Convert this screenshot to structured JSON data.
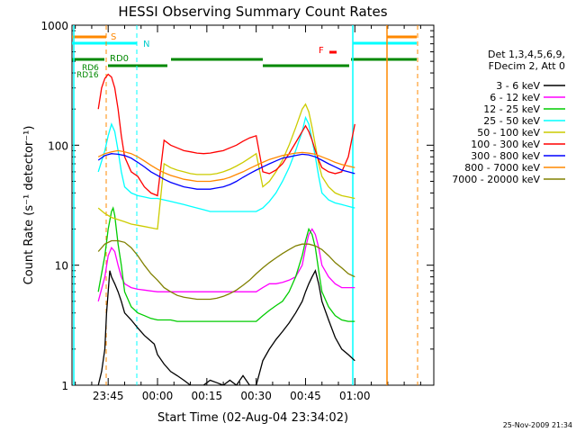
{
  "chart_data": {
    "type": "line",
    "title": "HESSI Observing Summary Count Rates",
    "xlabel": "Start Time (02-Aug-04 23:34:02)",
    "ylabel": "Count Rate (s⁻¹ detector⁻¹)",
    "ylim": [
      1,
      1000
    ],
    "yscale": "log",
    "grid": false,
    "legend_position": "right",
    "legend_header": [
      "Det 1,3,4,5,6,9,",
      "FDecim 2, Att 0"
    ],
    "x_ticks": [
      "23:45",
      "00:00",
      "00:15",
      "00:30",
      "00:45",
      "01:00"
    ],
    "x_tick_minutes": [
      11,
      26,
      41,
      56,
      71,
      86
    ],
    "xlim_minutes": [
      0,
      110
    ],
    "y_ticks": [
      "1",
      "10",
      "100",
      "1000"
    ],
    "y_tick_values": [
      1,
      10,
      100,
      1000
    ],
    "series": [
      {
        "name": "3 - 6 keV",
        "color": "#000000",
        "x": [
          8,
          9,
          10,
          10.5,
          11,
          11.5,
          12,
          13,
          14,
          15,
          16,
          18,
          20,
          22,
          25,
          26,
          28,
          30,
          32,
          34,
          36,
          38,
          40,
          42,
          44,
          46,
          48,
          50,
          52,
          54,
          56,
          58,
          60,
          62,
          64,
          66,
          68,
          70,
          71,
          72,
          73,
          74,
          75,
          76,
          78,
          80,
          82,
          84,
          86
        ],
        "y": [
          1,
          1.3,
          2,
          4,
          6,
          9,
          8,
          7,
          6,
          5,
          4,
          3.5,
          3,
          2.6,
          2.2,
          1.8,
          1.5,
          1.3,
          1.2,
          1.1,
          1,
          1,
          1,
          1.1,
          1.05,
          1,
          1.1,
          1,
          1.2,
          1,
          1,
          1.6,
          2,
          2.4,
          2.8,
          3.3,
          4,
          5,
          6,
          7,
          8,
          9,
          7,
          5,
          3.5,
          2.5,
          2,
          1.8,
          1.6
        ]
      },
      {
        "name": "6 - 12 keV",
        "color": "#ff00ff",
        "x": [
          8,
          10,
          11,
          12,
          13,
          14,
          15,
          16,
          18,
          20,
          22,
          24,
          26,
          28,
          30,
          32,
          34,
          36,
          38,
          40,
          42,
          44,
          46,
          48,
          50,
          52,
          54,
          56,
          58,
          60,
          62,
          64,
          66,
          68,
          70,
          71,
          72,
          73,
          74,
          75,
          76,
          78,
          80,
          82,
          84,
          86
        ],
        "y": [
          5,
          8,
          12,
          14,
          13,
          10,
          8,
          7,
          6.5,
          6.3,
          6.2,
          6.1,
          6,
          6,
          6,
          6,
          6,
          6,
          6,
          6,
          6,
          6,
          6,
          6,
          6,
          6,
          6,
          6,
          6.5,
          7,
          7,
          7.2,
          7.5,
          8,
          10,
          14,
          18,
          20,
          18,
          14,
          10,
          8,
          7,
          6.5,
          6.5,
          6.5
        ]
      },
      {
        "name": "12 - 25 keV",
        "color": "#00cc00",
        "x": [
          8,
          10,
          11,
          12,
          12.5,
          13,
          14,
          15,
          16,
          18,
          20,
          22,
          24,
          26,
          28,
          30,
          32,
          34,
          36,
          38,
          40,
          42,
          44,
          46,
          48,
          50,
          52,
          54,
          56,
          58,
          60,
          62,
          64,
          66,
          68,
          70,
          71,
          72,
          73,
          74,
          75,
          76,
          78,
          80,
          82,
          84,
          86
        ],
        "y": [
          6,
          12,
          20,
          28,
          30,
          26,
          15,
          10,
          6,
          4.5,
          4,
          3.8,
          3.6,
          3.5,
          3.5,
          3.5,
          3.4,
          3.4,
          3.4,
          3.4,
          3.4,
          3.4,
          3.4,
          3.4,
          3.4,
          3.4,
          3.4,
          3.4,
          3.4,
          3.8,
          4.2,
          4.6,
          5,
          6,
          8,
          12,
          16,
          20,
          18,
          14,
          9,
          6,
          4.5,
          3.8,
          3.5,
          3.4,
          3.4
        ]
      },
      {
        "name": "25 - 50 keV",
        "color": "#00ffff",
        "x": [
          8,
          10,
          11,
          12,
          13,
          14,
          15,
          16,
          18,
          20,
          22,
          24,
          26,
          28,
          30,
          32,
          34,
          36,
          38,
          40,
          42,
          44,
          46,
          48,
          50,
          52,
          54,
          56,
          58,
          60,
          62,
          64,
          66,
          68,
          70,
          71,
          72,
          73,
          74,
          75,
          76,
          78,
          80,
          82,
          84,
          86
        ],
        "y": [
          60,
          90,
          120,
          150,
          130,
          90,
          60,
          45,
          40,
          38,
          37,
          36,
          36,
          35,
          34,
          33,
          32,
          31,
          30,
          29,
          28,
          28,
          28,
          28,
          28,
          28,
          28,
          28,
          30,
          34,
          40,
          50,
          65,
          90,
          130,
          170,
          150,
          110,
          80,
          55,
          40,
          35,
          33,
          32,
          31,
          30
        ]
      },
      {
        "name": "50 - 100 keV",
        "color": "#cccc00",
        "x": [
          8,
          10,
          12,
          14,
          16,
          18,
          20,
          22,
          24,
          26,
          28,
          30,
          32,
          34,
          36,
          38,
          40,
          42,
          44,
          46,
          48,
          50,
          52,
          54,
          56,
          58,
          60,
          62,
          64,
          66,
          68,
          70,
          71,
          72,
          73,
          74,
          75,
          76,
          78,
          80,
          82,
          84,
          86
        ],
        "y": [
          30,
          27,
          25,
          24,
          23,
          22,
          21.5,
          21,
          20.5,
          20,
          70,
          65,
          62,
          60,
          58,
          57,
          57,
          57,
          58,
          60,
          63,
          67,
          72,
          78,
          85,
          45,
          50,
          60,
          75,
          100,
          140,
          200,
          220,
          190,
          140,
          100,
          70,
          55,
          45,
          40,
          38,
          37,
          36
        ]
      },
      {
        "name": "100 - 300 keV",
        "color": "#ff0000",
        "x": [
          8,
          9,
          10,
          11,
          12,
          13,
          14,
          15,
          16,
          18,
          20,
          22,
          24,
          26,
          28,
          30,
          32,
          34,
          36,
          38,
          40,
          42,
          44,
          46,
          48,
          50,
          52,
          54,
          56,
          58,
          60,
          62,
          64,
          66,
          68,
          70,
          71,
          72,
          73,
          74,
          75,
          76,
          78,
          80,
          82,
          84,
          86
        ],
        "y": [
          200,
          300,
          360,
          390,
          370,
          300,
          200,
          120,
          80,
          60,
          55,
          45,
          40,
          38,
          110,
          100,
          95,
          90,
          88,
          86,
          85,
          86,
          88,
          90,
          95,
          100,
          108,
          115,
          120,
          60,
          58,
          62,
          70,
          85,
          105,
          130,
          145,
          130,
          110,
          90,
          75,
          65,
          60,
          58,
          60,
          80,
          150
        ]
      },
      {
        "name": "300 - 800 keV",
        "color": "#0000ff",
        "x": [
          8,
          10,
          12,
          14,
          16,
          18,
          20,
          22,
          24,
          26,
          28,
          30,
          32,
          34,
          36,
          38,
          40,
          42,
          44,
          46,
          48,
          50,
          52,
          54,
          56,
          58,
          60,
          62,
          64,
          66,
          68,
          70,
          72,
          74,
          76,
          78,
          80,
          82,
          84,
          86
        ],
        "y": [
          75,
          82,
          85,
          84,
          82,
          78,
          72,
          66,
          60,
          56,
          52,
          49,
          47,
          45,
          44,
          43,
          43,
          43,
          44,
          45,
          47,
          50,
          54,
          58,
          62,
          66,
          70,
          74,
          78,
          80,
          82,
          84,
          83,
          80,
          75,
          70,
          66,
          62,
          60,
          58
        ]
      },
      {
        "name": "800 - 7000 keV",
        "color": "#ff8800",
        "x": [
          8,
          10,
          12,
          14,
          16,
          18,
          20,
          22,
          24,
          26,
          28,
          30,
          32,
          34,
          36,
          38,
          40,
          42,
          44,
          46,
          48,
          50,
          52,
          54,
          56,
          58,
          60,
          62,
          64,
          66,
          68,
          70,
          72,
          74,
          76,
          78,
          80,
          82,
          84,
          86
        ],
        "y": [
          80,
          85,
          88,
          90,
          88,
          85,
          80,
          74,
          68,
          63,
          59,
          56,
          54,
          52,
          51,
          50,
          50,
          50,
          51,
          52,
          54,
          57,
          60,
          64,
          68,
          72,
          76,
          79,
          82,
          84,
          86,
          87,
          86,
          84,
          80,
          76,
          72,
          69,
          67,
          65
        ]
      },
      {
        "name": "7000 - 20000 keV",
        "color": "#808000",
        "x": [
          8,
          10,
          12,
          14,
          16,
          18,
          20,
          22,
          24,
          26,
          28,
          30,
          32,
          34,
          36,
          38,
          40,
          42,
          44,
          46,
          48,
          50,
          52,
          54,
          56,
          58,
          60,
          62,
          64,
          66,
          68,
          70,
          72,
          74,
          76,
          78,
          80,
          82,
          84,
          86
        ],
        "y": [
          13,
          15,
          16,
          16,
          15.5,
          14,
          12,
          10,
          8.5,
          7.5,
          6.5,
          6,
          5.6,
          5.4,
          5.3,
          5.2,
          5.2,
          5.2,
          5.3,
          5.5,
          5.8,
          6.2,
          6.8,
          7.5,
          8.5,
          9.5,
          10.5,
          11.5,
          12.5,
          13.5,
          14.5,
          15,
          15,
          14.5,
          13.5,
          12,
          10.5,
          9.5,
          8.5,
          8
        ]
      }
    ]
  },
  "status_bars": {
    "labels": [
      "S",
      "N",
      "RD0",
      "RD6",
      "RD16",
      "F"
    ],
    "S_color": "#ff8800",
    "N_color": "#00ffff",
    "RD_color": "#008800",
    "F_color": "#ff0000"
  },
  "footer": {
    "date_stamp": "25-Nov-2009 21:34"
  }
}
